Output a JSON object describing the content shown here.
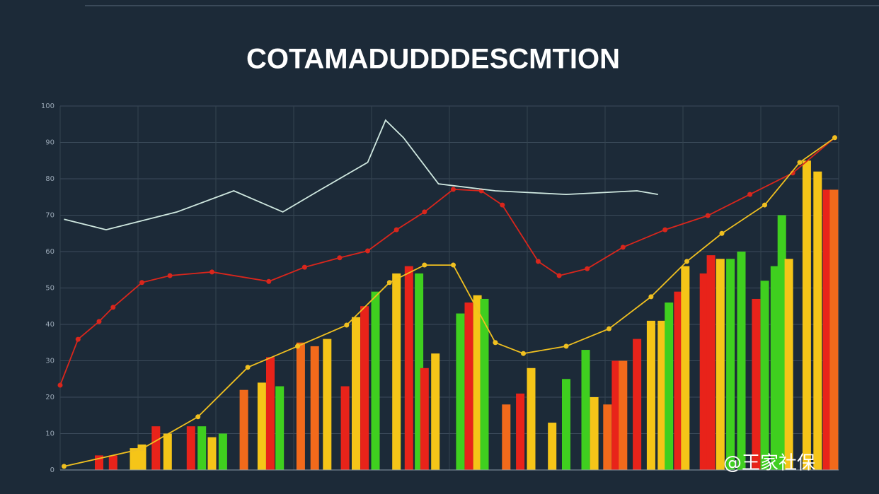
{
  "chart_data": {
    "type": "bar-line",
    "title": "COTAMADUDDDESCMTION",
    "watermark": "@王家社保",
    "background": "#1c2a38",
    "grid": true,
    "xlim": [
      0,
      100
    ],
    "ylim": [
      0,
      100
    ],
    "xticks": [
      0,
      10,
      20,
      30,
      40,
      50,
      60,
      70,
      80,
      90,
      100
    ],
    "yticks": [
      0,
      10,
      20,
      30,
      40,
      50,
      60,
      70,
      80,
      90,
      100
    ],
    "bars": {
      "x": [
        5,
        6.8,
        9.5,
        10.5,
        12.3,
        13.8,
        16.8,
        18.2,
        19.5,
        20.9,
        23.6,
        25.9,
        27,
        28.2,
        30.9,
        32.7,
        34.3,
        36.6,
        38,
        39.1,
        40.5,
        43.2,
        44.8,
        46.1,
        46.8,
        48.2,
        51.4,
        52.5,
        53.6,
        54.5,
        57.3,
        59.1,
        60.5,
        63.2,
        65,
        67.5,
        68.6,
        70.3,
        71.4,
        72.3,
        74.1,
        75.9,
        77.3,
        78.2,
        79.4,
        80.3,
        82.7,
        83.6,
        84.8,
        86.1,
        87.5,
        89.4,
        90.5,
        91.8,
        92.7,
        93.6,
        95.9,
        97.3,
        98.5,
        99.4
      ],
      "values": [
        4,
        4,
        6,
        7,
        12,
        10,
        12,
        12,
        9,
        10,
        22,
        24,
        31,
        23,
        35,
        34,
        36,
        23,
        42,
        45,
        49,
        54,
        56,
        54,
        28,
        32,
        43,
        46,
        48,
        47,
        18,
        21,
        28,
        13,
        25,
        33,
        20,
        18,
        30,
        30,
        36,
        41,
        41,
        46,
        49,
        56,
        54,
        59,
        58,
        58,
        60,
        47,
        52,
        56,
        70,
        58,
        85,
        82,
        77,
        77
      ],
      "colors": [
        "#e8231a",
        "#e8231a",
        "#f5c518",
        "#f5c518",
        "#e8231a",
        "#f5c518",
        "#e8231a",
        "#3fcf1f",
        "#f5c518",
        "#3fcf1f",
        "#f26a1b",
        "#f5c518",
        "#e8231a",
        "#3fcf1f",
        "#f26a1b",
        "#f26a1b",
        "#f5c518",
        "#e8231a",
        "#f5c518",
        "#e8231a",
        "#3fcf1f",
        "#f5c518",
        "#e8231a",
        "#3fcf1f",
        "#e8231a",
        "#f5c518",
        "#3fcf1f",
        "#e8231a",
        "#f5c518",
        "#3fcf1f",
        "#f26a1b",
        "#e8231a",
        "#f5c518",
        "#f5c518",
        "#3fcf1f",
        "#3fcf1f",
        "#f5c518",
        "#f26a1b",
        "#e8231a",
        "#f26a1b",
        "#e8231a",
        "#f5c518",
        "#f5c518",
        "#3fcf1f",
        "#e8231a",
        "#f5c518",
        "#e8231a",
        "#e8231a",
        "#f5c518",
        "#3fcf1f",
        "#3fcf1f",
        "#e8231a",
        "#3fcf1f",
        "#3fcf1f",
        "#3fcf1f",
        "#f5c518",
        "#f5c518",
        "#f5c518",
        "#e8231a",
        "#f26a1b"
      ]
    },
    "lines": [
      {
        "color": "#d9261c",
        "markers": true,
        "x": [
          0,
          2.3,
          5,
          6.8,
          10.5,
          14.1,
          19.5,
          26.8,
          31.4,
          35.9,
          39.5,
          43.2,
          46.8,
          50.5,
          54.1,
          56.8,
          61.4,
          64.1,
          67.7,
          72.3,
          77.7,
          83.2,
          88.6,
          94.1,
          99.5
        ],
        "values": [
          23.3,
          35.9,
          40.8,
          44.7,
          51.5,
          53.4,
          54.4,
          51.8,
          55.7,
          58.3,
          60.2,
          66,
          70.9,
          77.1,
          76.7,
          72.8,
          57.3,
          53.4,
          55.3,
          61.2,
          66,
          69.9,
          75.7,
          81.6,
          91.3
        ]
      },
      {
        "color": "#f0c020",
        "markers": true,
        "x": [
          0.5,
          10.5,
          17.7,
          24.1,
          30.5,
          36.8,
          42.3,
          46.8,
          50.5,
          55.9,
          59.5,
          65,
          70.5,
          75.9,
          80.5,
          85,
          90.5,
          95,
          99.5
        ],
        "values": [
          1,
          5.8,
          14.6,
          28.2,
          34,
          39.8,
          51.5,
          56.3,
          56.3,
          35,
          32,
          34,
          38.8,
          47.6,
          57.3,
          65,
          72.8,
          84.5,
          91.3
        ]
      },
      {
        "color": "#cfe8e0",
        "markers": false,
        "x": [
          0.5,
          5.9,
          15,
          22.3,
          28.6,
          33.2,
          39.5,
          41.8,
          44.1,
          48.6,
          55.9,
          65,
          74.1,
          76.8
        ],
        "values": [
          68.9,
          66,
          70.9,
          76.7,
          70.9,
          76.7,
          84.5,
          96.1,
          91.3,
          78.6,
          76.7,
          75.7,
          76.7,
          75.7
        ]
      }
    ]
  }
}
